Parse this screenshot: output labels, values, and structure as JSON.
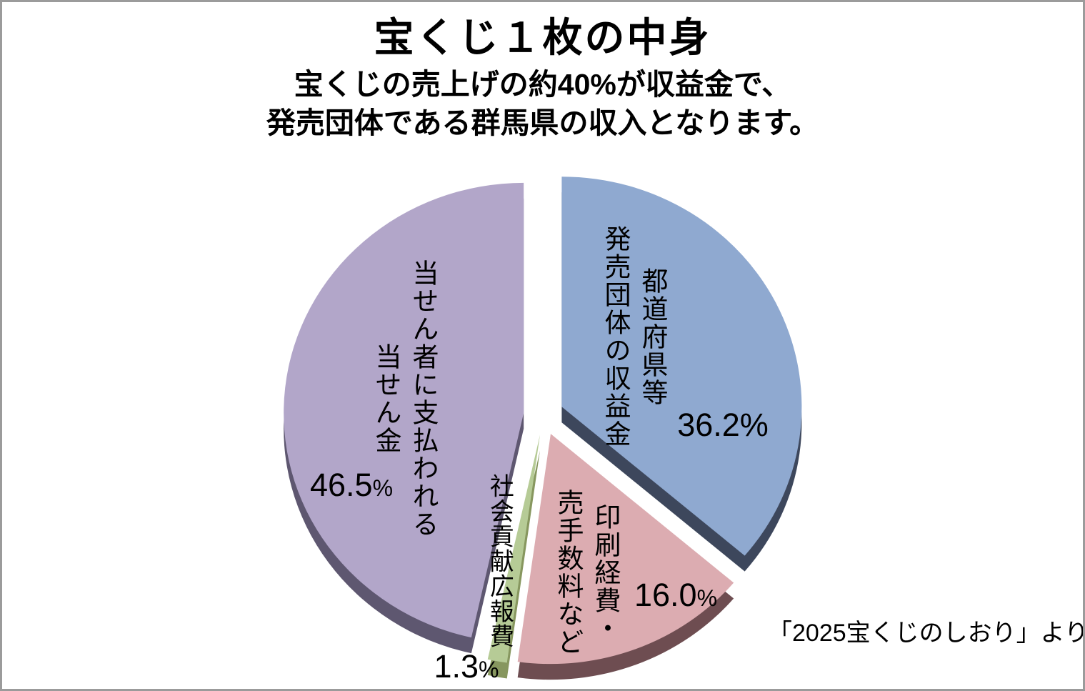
{
  "header": {
    "title": "宝くじ１枚の中身",
    "subtitle_line1": "宝くじの売上げの約40%が収益金で、",
    "subtitle_line2": "発売団体である群馬県の収入となります。"
  },
  "source_note": "「2025宝くじのしおり」より",
  "chart_data": {
    "type": "pie",
    "title": "宝くじ１枚の中身",
    "style": "3d-exploded",
    "direction": "clockwise",
    "start_angle_deg": 0,
    "unit": "percent",
    "legend": "none (labels drawn on slices)",
    "slices": [
      {
        "name": "都道府県等発売団体の収益金",
        "label_lines": [
          "都道府県等",
          "発売団体の収益金"
        ],
        "value": 36.2,
        "value_text": "36.2",
        "percent_sign": "%",
        "color": "#8FA9D0",
        "depth_color": "#3D475C"
      },
      {
        "name": "印刷経費・売手数料など",
        "label_lines": [
          "印刷経費・",
          "売手数料など"
        ],
        "value": 16.0,
        "value_text": "16.0",
        "percent_sign": "%",
        "color": "#DCACB1",
        "depth_color": "#6E4D51"
      },
      {
        "name": "社会貢献広報費",
        "label_lines": [
          "社会貢献広報費"
        ],
        "value": 1.3,
        "value_text": "1.3",
        "percent_sign": "%",
        "color": "#B6CB96",
        "depth_color": "#87975F"
      },
      {
        "name": "当せん者に支払われる当せん金",
        "label_lines": [
          "当せん者に支払われる",
          "当せん金"
        ],
        "value": 46.5,
        "value_text": "46.5",
        "percent_sign": "%",
        "color": "#B2A6C9",
        "depth_color": "#5E5770"
      }
    ]
  }
}
